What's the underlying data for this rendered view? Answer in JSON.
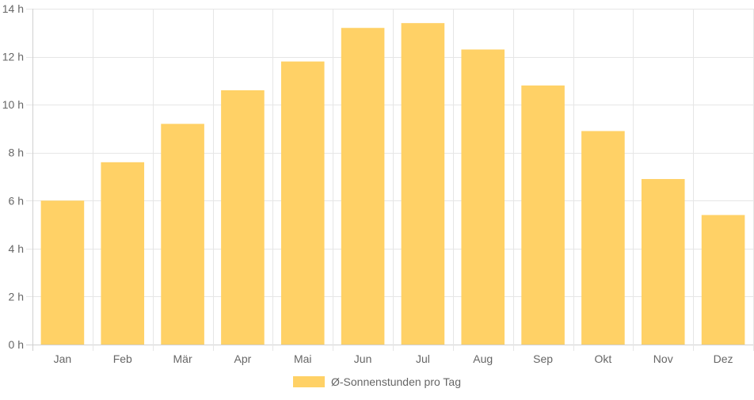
{
  "chart_data": {
    "type": "bar",
    "categories": [
      "Jan",
      "Feb",
      "Mär",
      "Apr",
      "Mai",
      "Jun",
      "Jul",
      "Aug",
      "Sep",
      "Okt",
      "Nov",
      "Dez"
    ],
    "series": [
      {
        "name": "Ø-Sonnenstunden pro Tag",
        "values": [
          6.0,
          7.6,
          9.2,
          10.6,
          11.8,
          13.2,
          13.4,
          12.3,
          10.8,
          8.9,
          6.9,
          5.4
        ],
        "color": "#ffd166"
      }
    ],
    "y_ticks": [
      "0 h",
      "2 h",
      "4 h",
      "6 h",
      "8 h",
      "10 h",
      "12 h",
      "14 h"
    ],
    "ylim": [
      0,
      14
    ],
    "grid": true,
    "legend_position": "bottom"
  }
}
